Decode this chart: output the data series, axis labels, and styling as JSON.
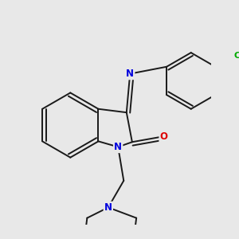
{
  "background_color": "#e8e8e8",
  "bond_color": "#1a1a1a",
  "atom_colors": {
    "N": "#0000dd",
    "O": "#dd0000",
    "Cl": "#00aa00",
    "C": "#1a1a1a"
  },
  "figsize": [
    3.0,
    3.0
  ],
  "dpi": 100
}
